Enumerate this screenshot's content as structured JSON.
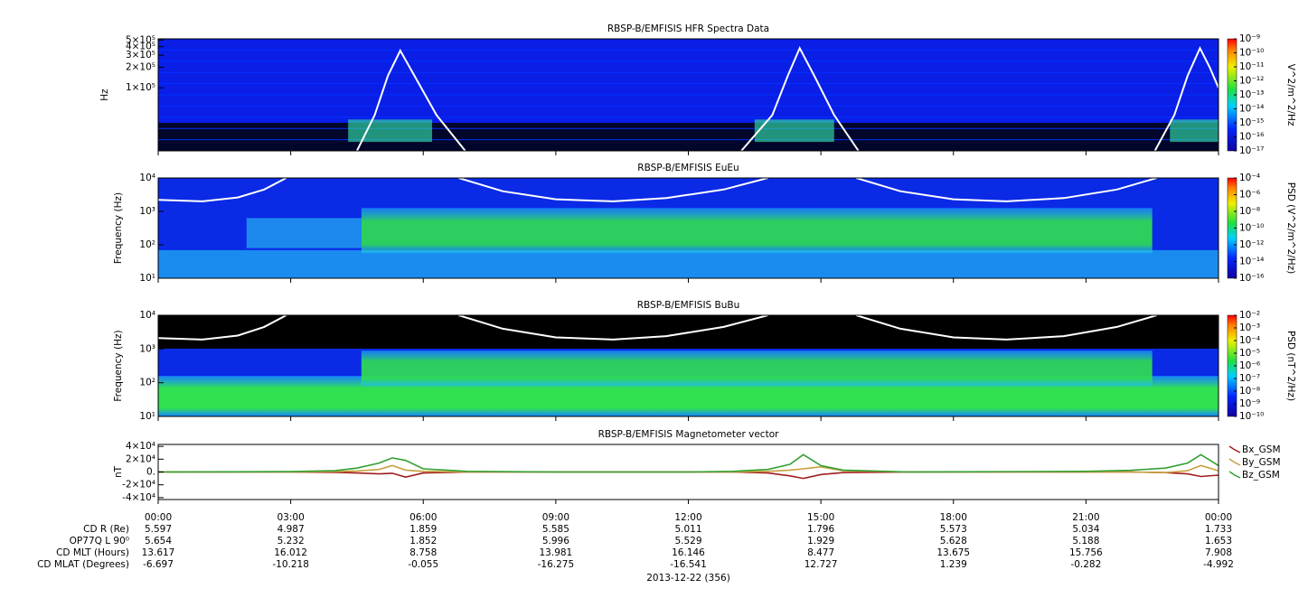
{
  "chart_data": [
    {
      "type": "spectrogram",
      "title": "RBSP-B/EMFISIS  HFR Spectra Data",
      "ylabel": "Hz",
      "log": true,
      "ylim": [
        12000,
        520000
      ],
      "yticks": [
        {
          "value": 500000,
          "label": "5×10⁵"
        },
        {
          "value": 400000,
          "label": "4×10⁵"
        },
        {
          "value": 300000,
          "label": "3×10⁵"
        },
        {
          "value": 200000,
          "label": "2×10⁵"
        },
        {
          "value": 100000,
          "label": "1×10⁵"
        }
      ],
      "colorbar": {
        "label": "V^2/m^2/Hz",
        "lim": [
          1e-17,
          1e-09
        ],
        "ticks": [
          {
            "value": 1e-09,
            "label": "10⁻⁹"
          },
          {
            "value": 1e-10,
            "label": "10⁻¹⁰"
          },
          {
            "value": 1e-11,
            "label": "10⁻¹¹"
          },
          {
            "value": 1e-12,
            "label": "10⁻¹²"
          },
          {
            "value": 1e-13,
            "label": "10⁻¹³"
          },
          {
            "value": 1e-14,
            "label": "10⁻¹⁴"
          },
          {
            "value": 1e-15,
            "label": "10⁻¹⁵"
          },
          {
            "value": 1e-16,
            "label": "10⁻¹⁶"
          },
          {
            "value": 1e-17,
            "label": "10⁻¹⁷"
          }
        ]
      },
      "overlay": {
        "color": "#ffffff",
        "x": [
          4.5,
          4.9,
          5.2,
          5.48,
          5.8,
          6.3,
          6.95,
          null,
          13.2,
          13.9,
          14.25,
          14.52,
          14.85,
          15.3,
          15.85,
          null,
          22.56,
          23.0,
          23.3,
          23.58,
          23.8,
          24
        ],
        "values": [
          12000,
          40000,
          150000,
          350000,
          150000,
          40000,
          12000,
          null,
          12000,
          40000,
          150000,
          380000,
          150000,
          40000,
          12000,
          null,
          12000,
          40000,
          150000,
          380000,
          200000,
          100000
        ]
      }
    },
    {
      "type": "spectrogram",
      "title": "RBSP-B/EMFISIS  EuEu",
      "ylabel": "Frequency (Hz)",
      "log": true,
      "ylim": [
        10,
        10000
      ],
      "yticks": [
        {
          "value": 10,
          "label": "10¹"
        },
        {
          "value": 100,
          "label": "10²"
        },
        {
          "value": 1000,
          "label": "10³"
        },
        {
          "value": 10000,
          "label": "10⁴"
        }
      ],
      "colorbar": {
        "label": "PSD (V^2/m^2/Hz)",
        "lim": [
          1e-16,
          0.0001
        ],
        "ticks": [
          {
            "value": 0.0001,
            "label": "10⁻⁴"
          },
          {
            "value": 1e-06,
            "label": "10⁻⁶"
          },
          {
            "value": 1e-08,
            "label": "10⁻⁸"
          },
          {
            "value": 1e-10,
            "label": "10⁻¹⁰"
          },
          {
            "value": 1e-12,
            "label": "10⁻¹²"
          },
          {
            "value": 1e-14,
            "label": "10⁻¹⁴"
          },
          {
            "value": 1e-16,
            "label": "10⁻¹⁶"
          }
        ]
      },
      "overlay": {
        "color": "#ffffff",
        "x": [
          0,
          1,
          1.8,
          2.4,
          2.9,
          null,
          6.8,
          7.8,
          9,
          10.3,
          11.5,
          12.8,
          13.8,
          null,
          15.8,
          16.8,
          18,
          19.2,
          20.5,
          21.7,
          22.6
        ],
        "values": [
          2200,
          2000,
          2600,
          4500,
          10000,
          null,
          10000,
          4000,
          2300,
          2000,
          2500,
          4500,
          10000,
          null,
          10000,
          4000,
          2300,
          2000,
          2500,
          4500,
          10000
        ]
      }
    },
    {
      "type": "spectrogram",
      "title": "RBSP-B/EMFISIS  BuBu",
      "ylabel": "Frequency (Hz)",
      "log": true,
      "ylim": [
        10,
        10000
      ],
      "yticks": [
        {
          "value": 10,
          "label": "10¹"
        },
        {
          "value": 100,
          "label": "10²"
        },
        {
          "value": 1000,
          "label": "10³"
        },
        {
          "value": 10000,
          "label": "10⁴"
        }
      ],
      "colorbar": {
        "label": "PSD (nT^2/Hz)",
        "lim": [
          1e-10,
          0.01
        ],
        "ticks": [
          {
            "value": 0.01,
            "label": "10⁻²"
          },
          {
            "value": 0.001,
            "label": "10⁻³"
          },
          {
            "value": 0.0001,
            "label": "10⁻⁴"
          },
          {
            "value": 1e-05,
            "label": "10⁻⁵"
          },
          {
            "value": 1e-06,
            "label": "10⁻⁶"
          },
          {
            "value": 1e-07,
            "label": "10⁻⁷"
          },
          {
            "value": 1e-08,
            "label": "10⁻⁸"
          },
          {
            "value": 1e-09,
            "label": "10⁻⁹"
          },
          {
            "value": 1e-10,
            "label": "10⁻¹⁰"
          }
        ]
      },
      "overlay": {
        "color": "#ffffff",
        "x": [
          0,
          1,
          1.8,
          2.4,
          2.9,
          null,
          6.8,
          7.8,
          9,
          10.3,
          11.5,
          12.8,
          13.8,
          null,
          15.8,
          16.8,
          18,
          19.2,
          20.5,
          21.7,
          22.6
        ],
        "values": [
          2100,
          1900,
          2500,
          4500,
          10000,
          null,
          10000,
          4000,
          2200,
          1900,
          2400,
          4500,
          10000,
          null,
          10000,
          4000,
          2200,
          1900,
          2400,
          4500,
          10000
        ]
      }
    },
    {
      "type": "line",
      "title": "RBSP-B/EMFISIS  Magnetometer vector",
      "ylabel": "nT",
      "ylim": [
        -43000,
        43000
      ],
      "yticks": [
        {
          "value": 40000,
          "label": "4×10⁴"
        },
        {
          "value": 20000,
          "label": "2×10⁴"
        },
        {
          "value": 0,
          "label": "0."
        },
        {
          "value": -20000,
          "label": "-2×10⁴"
        },
        {
          "value": -40000,
          "label": "-4×10⁴"
        }
      ],
      "x": [
        0,
        3,
        4,
        4.5,
        5,
        5.3,
        5.6,
        6,
        7,
        9,
        12,
        13,
        13.8,
        14.3,
        14.6,
        15,
        15.5,
        17,
        21,
        22,
        22.8,
        23.3,
        23.6,
        24
      ],
      "series": [
        {
          "name": "Bx_GSM",
          "color": "#a01e1e",
          "values": [
            0,
            0,
            -500,
            -1500,
            -3000,
            -2000,
            -8000,
            -1500,
            0,
            0,
            0,
            0,
            -1500,
            -6000,
            -10000,
            -4000,
            -1000,
            0,
            0,
            0,
            -1000,
            -3000,
            -7000,
            -5000
          ]
        },
        {
          "name": "By_GSM",
          "color": "#c8a03c",
          "values": [
            0,
            0,
            500,
            1500,
            4000,
            10000,
            3000,
            1000,
            0,
            0,
            0,
            0,
            1000,
            3000,
            5000,
            8000,
            2000,
            0,
            0,
            0,
            -1000,
            2000,
            10000,
            2000
          ]
        },
        {
          "name": "Bz_GSM",
          "color": "#32a032",
          "values": [
            0,
            500,
            2000,
            6000,
            14000,
            22000,
            18000,
            5000,
            1000,
            0,
            0,
            1000,
            4000,
            12000,
            27000,
            10000,
            3000,
            0,
            1000,
            2500,
            6000,
            14000,
            27000,
            10000
          ]
        }
      ]
    }
  ],
  "time_axis": {
    "xlim": [
      0,
      24
    ],
    "xticks": [
      {
        "value": 0,
        "label": "00:00"
      },
      {
        "value": 3,
        "label": "03:00"
      },
      {
        "value": 6,
        "label": "06:00"
      },
      {
        "value": 9,
        "label": "09:00"
      },
      {
        "value": 12,
        "label": "12:00"
      },
      {
        "value": 15,
        "label": "15:00"
      },
      {
        "value": 18,
        "label": "18:00"
      },
      {
        "value": 21,
        "label": "21:00"
      },
      {
        "value": 24,
        "label": "00:00"
      }
    ],
    "date": "2013-12-22 (356)"
  },
  "ephemeris": {
    "rows": [
      {
        "label": "CD R (Re)",
        "values": [
          "5.597",
          "4.987",
          "1.859",
          "5.585",
          "5.011",
          "1.796",
          "5.573",
          "5.034",
          "1.733"
        ]
      },
      {
        "label": "OP77Q L 90⁰",
        "values": [
          "5.654",
          "5.232",
          "1.852",
          "5.996",
          "5.529",
          "1.929",
          "5.628",
          "5.188",
          "1.653"
        ]
      },
      {
        "label": "CD MLT (Hours)",
        "values": [
          "13.617",
          "16.012",
          "8.758",
          "13.981",
          "16.146",
          "8.477",
          "13.675",
          "15.756",
          "7.908"
        ]
      },
      {
        "label": "CD MLAT (Degrees)",
        "values": [
          "-6.697",
          "-10.218",
          "-0.055",
          "-16.275",
          "-16.541",
          "12.727",
          "1.239",
          "-0.282",
          "-4.992"
        ]
      }
    ]
  }
}
